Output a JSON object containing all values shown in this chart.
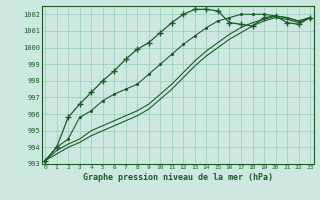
{
  "title": "Graphe pression niveau de la mer (hPa)",
  "bg_color": "#cce8e0",
  "grid_color": "#99ccbb",
  "line_color": "#1a5c28",
  "x_values": [
    0,
    1,
    2,
    3,
    4,
    5,
    6,
    7,
    8,
    9,
    10,
    11,
    12,
    13,
    14,
    15,
    16,
    17,
    18,
    19,
    20,
    21,
    22,
    23
  ],
  "series_marker": [
    993.2,
    994.0,
    995.8,
    996.6,
    997.3,
    998.0,
    998.6,
    999.3,
    999.9,
    1000.3,
    1000.9,
    1001.5,
    1002.0,
    1002.3,
    1002.3,
    1002.2,
    1001.5,
    1001.4,
    1001.3,
    1001.8,
    1001.9,
    1001.5,
    1001.4,
    1001.8
  ],
  "series_dotted": [
    993.2,
    994.0,
    994.5,
    995.8,
    996.2,
    996.8,
    997.2,
    997.5,
    997.8,
    998.4,
    999.0,
    999.6,
    1000.2,
    1000.7,
    1001.2,
    1001.6,
    1001.8,
    1002.0,
    1002.0,
    1002.0,
    1001.9,
    1001.8,
    1001.6,
    1001.8
  ],
  "series_plain1": [
    993.2,
    993.8,
    994.2,
    994.5,
    995.0,
    995.3,
    995.6,
    995.9,
    996.2,
    996.6,
    997.2,
    997.8,
    998.5,
    999.2,
    999.8,
    1000.3,
    1000.8,
    1001.2,
    1001.5,
    1001.7,
    1001.9,
    1001.8,
    1001.6,
    1001.8
  ],
  "series_plain2": [
    993.2,
    993.6,
    994.0,
    994.3,
    994.7,
    995.0,
    995.3,
    995.6,
    995.9,
    996.3,
    996.9,
    997.5,
    998.2,
    998.9,
    999.5,
    1000.0,
    1000.5,
    1000.9,
    1001.3,
    1001.6,
    1001.8,
    1001.7,
    1001.5,
    1001.8
  ],
  "ylim": [
    993,
    1002.5
  ],
  "yticks": [
    993,
    994,
    995,
    996,
    997,
    998,
    999,
    1000,
    1001,
    1002
  ],
  "xlim": [
    -0.3,
    23.3
  ]
}
